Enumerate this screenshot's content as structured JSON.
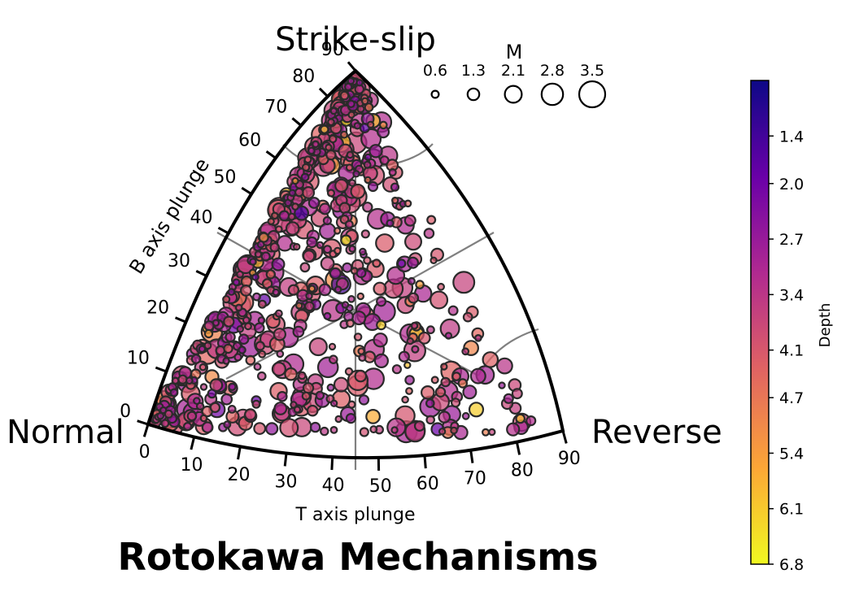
{
  "chart_data": {
    "type": "scatter",
    "projection": "Kaverina ternary focal-mechanism diagram",
    "title": "Rotokawa Mechanisms",
    "corner_labels": {
      "top": "Strike-slip",
      "left": "Normal",
      "right": "Reverse"
    },
    "b_axis": {
      "label": "B axis plunge",
      "ticks": [
        0,
        10,
        20,
        30,
        40,
        50,
        60,
        70,
        80,
        90
      ]
    },
    "t_axis": {
      "label": "T axis plunge",
      "ticks": [
        0,
        10,
        20,
        30,
        40,
        50,
        60,
        70,
        80,
        90
      ]
    },
    "size_legend": {
      "title": "M",
      "values": [
        0.6,
        1.3,
        2.1,
        2.8,
        3.5
      ]
    },
    "colorbar": {
      "label": "Depth",
      "colormap": "plasma_r",
      "vmin": 0.7,
      "vmax": 6.8,
      "tick_labels": [
        "1.4",
        "2.0",
        "2.7",
        "3.4",
        "4.1",
        "4.7",
        "5.4",
        "6.1",
        "6.8"
      ],
      "colors": [
        "#0d0887",
        "#6a00a8",
        "#b12a90",
        "#e16462",
        "#fca636",
        "#f0f921"
      ]
    },
    "point_count": 700,
    "point_note": "Events plotted by T-axis plunge (x) and B-axis plunge (y); dense cluster toward the Normal corner, sparse toward Reverse.",
    "points_sample": [
      {
        "t": 10,
        "b": 2,
        "mag": 2.1,
        "depth": 3.2
      },
      {
        "t": 25,
        "b": 15,
        "mag": 2.8,
        "depth": 3.6
      },
      {
        "t": 28,
        "b": 34,
        "mag": 3.1,
        "depth": 4.0
      },
      {
        "t": 34,
        "b": 7,
        "mag": 3.0,
        "depth": 3.8
      },
      {
        "t": 30,
        "b": 60,
        "mag": 2.4,
        "depth": 3.1
      },
      {
        "t": 20,
        "b": 72,
        "mag": 2.3,
        "depth": 3.5
      },
      {
        "t": 45,
        "b": 20,
        "mag": 1.5,
        "depth": 4.8
      },
      {
        "t": 65,
        "b": 10,
        "mag": 1.2,
        "depth": 4.2
      }
    ]
  }
}
